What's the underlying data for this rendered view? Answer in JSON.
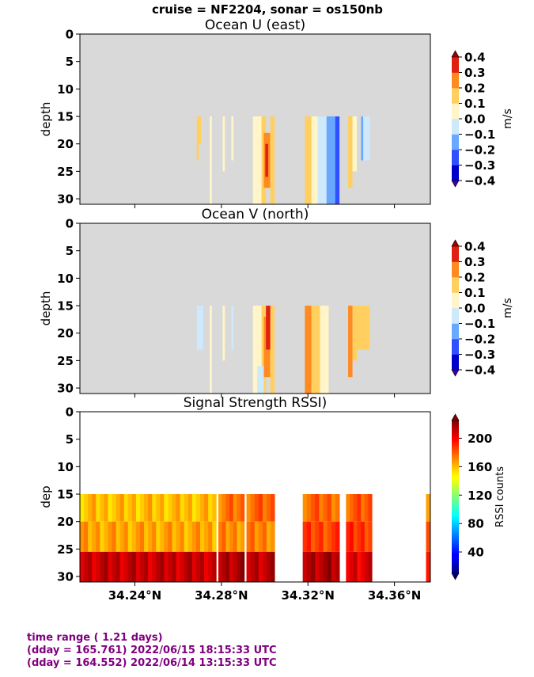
{
  "suptitle": "cruise = NF2204,  sonar = os150nb",
  "chart_data": [
    {
      "type": "heatmap",
      "title": "Ocean U (east)",
      "ylabel": "depth",
      "yticks": [
        0,
        5,
        10,
        15,
        20,
        25,
        30
      ],
      "ylim": [
        31,
        0
      ],
      "xticks": [],
      "colorbar": {
        "label": "m/s",
        "vmin": -0.4,
        "vmax": 0.4,
        "ticks": [
          "0.4",
          "0.3",
          "0.2",
          "0.1",
          "0.0",
          "−0.1",
          "−0.2",
          "−0.3",
          "−0.4"
        ]
      },
      "cells": [
        {
          "x": [
            34.2686,
            34.2696
          ],
          "y": [
            15,
            23
          ],
          "v": 0.15
        },
        {
          "x": [
            34.2696,
            34.2706
          ],
          "y": [
            15,
            20
          ],
          "v": 0.12
        },
        {
          "x": [
            34.2746,
            34.2756
          ],
          "y": [
            15,
            31
          ],
          "v": 0.05
        },
        {
          "x": [
            34.2806,
            34.2816
          ],
          "y": [
            15,
            25
          ],
          "v": 0.05
        },
        {
          "x": [
            34.2846,
            34.2856
          ],
          "y": [
            15,
            23
          ],
          "v": 0.05
        },
        {
          "x": [
            34.2946,
            34.2986
          ],
          "y": [
            15,
            31
          ],
          "v": 0.05
        },
        {
          "x": [
            34.2986,
            34.3006
          ],
          "y": [
            15,
            31
          ],
          "v": 0.15
        },
        {
          "x": [
            34.2996,
            34.3026
          ],
          "y": [
            18,
            28
          ],
          "v": 0.25
        },
        {
          "x": [
            34.3003,
            34.3016
          ],
          "y": [
            20,
            26
          ],
          "v": 0.32
        },
        {
          "x": [
            34.3026,
            34.3046
          ],
          "y": [
            15,
            31
          ],
          "v": 0.12
        },
        {
          "x": [
            34.3186,
            34.3216
          ],
          "y": [
            15,
            31
          ],
          "v": 0.1
        },
        {
          "x": [
            34.3216,
            34.3246
          ],
          "y": [
            15,
            31
          ],
          "v": 0.05
        },
        {
          "x": [
            34.3246,
            34.3286
          ],
          "y": [
            15,
            31
          ],
          "v": -0.05
        },
        {
          "x": [
            34.3286,
            34.3326
          ],
          "y": [
            15,
            31
          ],
          "v": -0.15
        },
        {
          "x": [
            34.3326,
            34.3346
          ],
          "y": [
            15,
            31
          ],
          "v": -0.25
        },
        {
          "x": [
            34.3386,
            34.3406
          ],
          "y": [
            15,
            28
          ],
          "v": 0.12
        },
        {
          "x": [
            34.3406,
            34.3426
          ],
          "y": [
            15,
            25
          ],
          "v": 0.05
        },
        {
          "x": [
            34.3446,
            34.3456
          ],
          "y": [
            15,
            23
          ],
          "v": -0.15
        },
        {
          "x": [
            34.3456,
            34.3486
          ],
          "y": [
            15,
            23
          ],
          "v": -0.05
        }
      ]
    },
    {
      "type": "heatmap",
      "title": "Ocean V (north)",
      "ylabel": "depth",
      "yticks": [
        0,
        5,
        10,
        15,
        20,
        25,
        30
      ],
      "ylim": [
        31,
        0
      ],
      "xticks": [],
      "colorbar": {
        "label": "m/s",
        "vmin": -0.4,
        "vmax": 0.4,
        "ticks": [
          "0.4",
          "0.3",
          "0.2",
          "0.1",
          "0.0",
          "−0.1",
          "−0.2",
          "−0.3",
          "−0.4"
        ]
      },
      "cells": [
        {
          "x": [
            34.2686,
            34.2716
          ],
          "y": [
            15,
            23
          ],
          "v": -0.05
        },
        {
          "x": [
            34.2746,
            34.2756
          ],
          "y": [
            15,
            31
          ],
          "v": 0.05
        },
        {
          "x": [
            34.2806,
            34.2816
          ],
          "y": [
            15,
            25
          ],
          "v": 0.05
        },
        {
          "x": [
            34.2846,
            34.2856
          ],
          "y": [
            15,
            23
          ],
          "v": -0.05
        },
        {
          "x": [
            34.2946,
            34.2986
          ],
          "y": [
            15,
            31
          ],
          "v": 0.05
        },
        {
          "x": [
            34.2986,
            34.3006
          ],
          "y": [
            15,
            31
          ],
          "v": 0.15
        },
        {
          "x": [
            34.2996,
            34.3026
          ],
          "y": [
            17,
            28
          ],
          "v": 0.25
        },
        {
          "x": [
            34.3006,
            34.3036
          ],
          "y": [
            15,
            23
          ],
          "v": 0.38
        },
        {
          "x": [
            34.3026,
            34.3046
          ],
          "y": [
            15,
            31
          ],
          "v": 0.12
        },
        {
          "x": [
            34.2966,
            34.2996
          ],
          "y": [
            26,
            31
          ],
          "v": -0.05
        },
        {
          "x": [
            34.3186,
            34.3216
          ],
          "y": [
            15,
            31
          ],
          "v": 0.22
        },
        {
          "x": [
            34.3216,
            34.3256
          ],
          "y": [
            15,
            31
          ],
          "v": 0.12
        },
        {
          "x": [
            34.3256,
            34.3296
          ],
          "y": [
            15,
            31
          ],
          "v": 0.05
        },
        {
          "x": [
            34.3386,
            34.3406
          ],
          "y": [
            15,
            28
          ],
          "v": 0.22
        },
        {
          "x": [
            34.3406,
            34.3426
          ],
          "y": [
            15,
            25
          ],
          "v": 0.15
        },
        {
          "x": [
            34.3426,
            34.3486
          ],
          "y": [
            15,
            23
          ],
          "v": 0.12
        }
      ]
    },
    {
      "type": "heatmap",
      "title": "Signal Strength RSSI)",
      "ylabel": "dep",
      "yticks": [
        0,
        5,
        10,
        15,
        20,
        25,
        30
      ],
      "ylim": [
        31,
        0
      ],
      "xticks": [
        "34.24°N",
        "34.28°N",
        "34.32°N",
        "34.36°N"
      ],
      "xtick_values": [
        34.24,
        34.28,
        34.32,
        34.36
      ],
      "xlim": [
        34.2146,
        34.3766
      ],
      "colorbar": {
        "label": "RSSI counts",
        "vmin": 10,
        "vmax": 225,
        "ticks": [
          "200",
          "160",
          "120",
          "80",
          "40"
        ],
        "tick_values": [
          200,
          160,
          120,
          80,
          40
        ]
      },
      "segments": [
        {
          "x": [
            34.2146,
            34.2776
          ],
          "rows": [
            160,
            165,
            210
          ]
        },
        {
          "x": [
            34.2786,
            34.2906
          ],
          "rows": [
            175,
            170,
            215
          ]
        },
        {
          "x": [
            34.2916,
            34.3046
          ],
          "rows": [
            178,
            172,
            212
          ]
        },
        {
          "x": [
            34.3176,
            34.3346
          ],
          "rows": [
            178,
            185,
            215
          ]
        },
        {
          "x": [
            34.3376,
            34.3496
          ],
          "rows": [
            180,
            188,
            205
          ]
        },
        {
          "x": [
            34.3746,
            34.3766
          ],
          "rows": [
            175,
            180,
            200
          ]
        }
      ]
    }
  ],
  "footer": {
    "line1": "time range ( 1.21 days)",
    "line2": "(dday = 165.761) 2022/06/15 18:15:33 UTC",
    "line3": "(dday = 164.552) 2022/06/14 13:15:33 UTC"
  }
}
